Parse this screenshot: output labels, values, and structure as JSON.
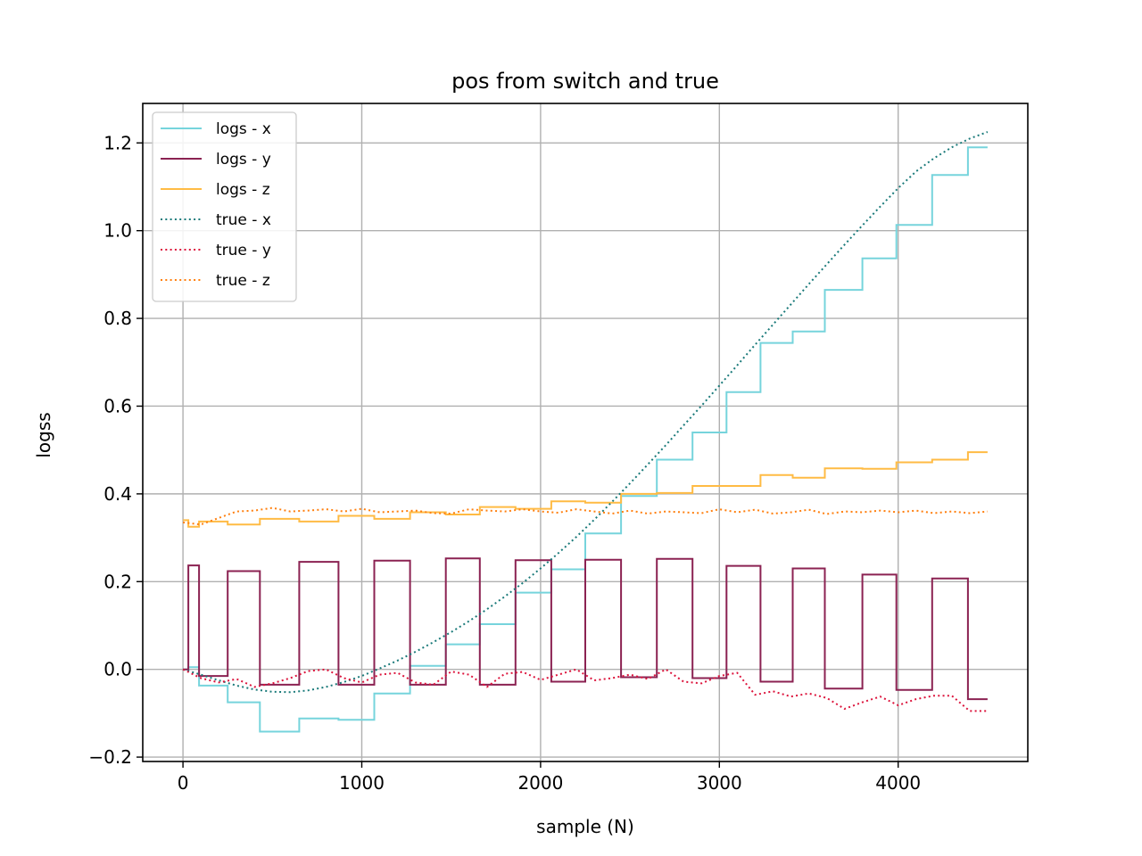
{
  "chart_data": {
    "type": "line",
    "title": "pos from switch and true",
    "xlabel": "sample (N)",
    "ylabel": "logss",
    "xlim": [
      -225,
      4725
    ],
    "ylim": [
      -0.21,
      1.29
    ],
    "xticks": [
      0,
      1000,
      2000,
      3000,
      4000
    ],
    "yticks": [
      -0.2,
      0.0,
      0.2,
      0.4,
      0.6,
      0.8,
      1.0,
      1.2
    ],
    "xtick_labels": [
      "0",
      "1000",
      "2000",
      "3000",
      "4000"
    ],
    "ytick_labels": [
      "−0.2",
      "0.0",
      "0.2",
      "0.4",
      "0.6",
      "0.8",
      "1.0",
      "1.2"
    ],
    "grid": true,
    "legend_position": "upper-left",
    "series": [
      {
        "name": "logs - x",
        "color": "#76d4dc",
        "style": "steps",
        "x": [
          0,
          30,
          90,
          250,
          430,
          650,
          870,
          1070,
          1270,
          1470,
          1660,
          1860,
          2060,
          2250,
          2450,
          2650,
          2850,
          3040,
          3230,
          3410,
          3590,
          3800,
          3990,
          4190,
          4390,
          4500
        ],
        "y": [
          0.0,
          0.005,
          -0.037,
          -0.075,
          -0.142,
          -0.112,
          -0.115,
          -0.055,
          0.008,
          0.057,
          0.103,
          0.175,
          0.228,
          0.31,
          0.395,
          0.478,
          0.54,
          0.632,
          0.744,
          0.77,
          0.865,
          0.937,
          1.013,
          1.127,
          1.19,
          1.19
        ]
      },
      {
        "name": "logs - y",
        "color": "#8b2252",
        "style": "steps",
        "x": [
          0,
          30,
          90,
          250,
          430,
          650,
          870,
          1070,
          1270,
          1470,
          1660,
          1860,
          2060,
          2250,
          2450,
          2650,
          2850,
          3040,
          3230,
          3410,
          3590,
          3800,
          3990,
          4190,
          4390,
          4500
        ],
        "y": [
          0.0,
          0.237,
          -0.015,
          0.224,
          -0.035,
          0.245,
          -0.035,
          0.248,
          -0.035,
          0.253,
          -0.035,
          0.249,
          -0.028,
          0.25,
          -0.018,
          0.252,
          -0.02,
          0.236,
          -0.028,
          0.23,
          -0.044,
          0.216,
          -0.047,
          0.207,
          -0.068,
          -0.068
        ]
      },
      {
        "name": "logs - z",
        "color": "#ffbb44",
        "style": "steps",
        "x": [
          0,
          30,
          90,
          250,
          430,
          650,
          870,
          1070,
          1270,
          1470,
          1660,
          1860,
          2060,
          2250,
          2450,
          2650,
          2850,
          3040,
          3230,
          3410,
          3590,
          3800,
          3990,
          4190,
          4390,
          4500
        ],
        "y": [
          0.34,
          0.325,
          0.337,
          0.33,
          0.343,
          0.337,
          0.35,
          0.343,
          0.358,
          0.353,
          0.37,
          0.366,
          0.383,
          0.38,
          0.4,
          0.402,
          0.418,
          0.418,
          0.443,
          0.437,
          0.458,
          0.457,
          0.472,
          0.478,
          0.495,
          0.495
        ]
      },
      {
        "name": "true - x",
        "color": "#1a7a7a",
        "style": "dotted",
        "x": [
          0,
          100,
          200,
          300,
          400,
          500,
          600,
          700,
          800,
          900,
          1000,
          1100,
          1200,
          1300,
          1400,
          1500,
          1600,
          1700,
          1800,
          1900,
          2000,
          2100,
          2200,
          2300,
          2400,
          2500,
          2600,
          2700,
          2800,
          2900,
          3000,
          3100,
          3200,
          3300,
          3400,
          3500,
          3600,
          3700,
          3800,
          3900,
          4000,
          4100,
          4200,
          4300,
          4400,
          4500
        ],
        "y": [
          0.0,
          -0.012,
          -0.025,
          -0.037,
          -0.046,
          -0.051,
          -0.052,
          -0.048,
          -0.04,
          -0.029,
          -0.015,
          0.002,
          0.02,
          0.04,
          0.062,
          0.085,
          0.11,
          0.137,
          0.166,
          0.197,
          0.23,
          0.265,
          0.302,
          0.341,
          0.382,
          0.424,
          0.467,
          0.511,
          0.556,
          0.601,
          0.647,
          0.693,
          0.74,
          0.786,
          0.832,
          0.878,
          0.923,
          0.968,
          1.012,
          1.055,
          1.097,
          1.135,
          1.165,
          1.19,
          1.21,
          1.225
        ]
      },
      {
        "name": "true - y",
        "color": "#dc143c",
        "style": "dotted",
        "x": [
          0,
          100,
          200,
          300,
          400,
          500,
          600,
          700,
          800,
          900,
          1000,
          1100,
          1200,
          1300,
          1400,
          1500,
          1600,
          1700,
          1800,
          1900,
          2000,
          2100,
          2200,
          2300,
          2400,
          2500,
          2600,
          2700,
          2800,
          2900,
          3000,
          3100,
          3200,
          3300,
          3400,
          3500,
          3600,
          3700,
          3800,
          3900,
          4000,
          4100,
          4200,
          4300,
          4400,
          4500
        ],
        "y": [
          0.0,
          -0.02,
          -0.03,
          -0.022,
          -0.04,
          -0.032,
          -0.02,
          -0.004,
          0.0,
          -0.02,
          -0.03,
          -0.012,
          -0.008,
          -0.03,
          -0.035,
          -0.005,
          -0.012,
          -0.04,
          -0.01,
          -0.006,
          -0.024,
          -0.012,
          0.0,
          -0.025,
          -0.02,
          -0.012,
          -0.022,
          0.0,
          -0.028,
          -0.032,
          -0.015,
          -0.008,
          -0.058,
          -0.05,
          -0.062,
          -0.055,
          -0.065,
          -0.09,
          -0.075,
          -0.062,
          -0.082,
          -0.068,
          -0.06,
          -0.06,
          -0.095,
          -0.095
        ]
      },
      {
        "name": "true - z",
        "color": "#ff7f0e",
        "style": "dotted",
        "x": [
          0,
          100,
          200,
          300,
          400,
          500,
          600,
          700,
          800,
          900,
          1000,
          1100,
          1200,
          1300,
          1400,
          1500,
          1600,
          1700,
          1800,
          1900,
          2000,
          2100,
          2200,
          2300,
          2400,
          2500,
          2600,
          2700,
          2800,
          2900,
          3000,
          3100,
          3200,
          3300,
          3400,
          3500,
          3600,
          3700,
          3800,
          3900,
          4000,
          4100,
          4200,
          4300,
          4400,
          4500
        ],
        "y": [
          0.335,
          0.33,
          0.345,
          0.36,
          0.362,
          0.368,
          0.36,
          0.362,
          0.365,
          0.36,
          0.366,
          0.358,
          0.36,
          0.362,
          0.356,
          0.355,
          0.365,
          0.362,
          0.36,
          0.365,
          0.36,
          0.357,
          0.365,
          0.36,
          0.355,
          0.362,
          0.355,
          0.36,
          0.358,
          0.356,
          0.365,
          0.358,
          0.364,
          0.355,
          0.358,
          0.364,
          0.354,
          0.36,
          0.358,
          0.362,
          0.358,
          0.362,
          0.356,
          0.36,
          0.356,
          0.36
        ]
      }
    ]
  }
}
